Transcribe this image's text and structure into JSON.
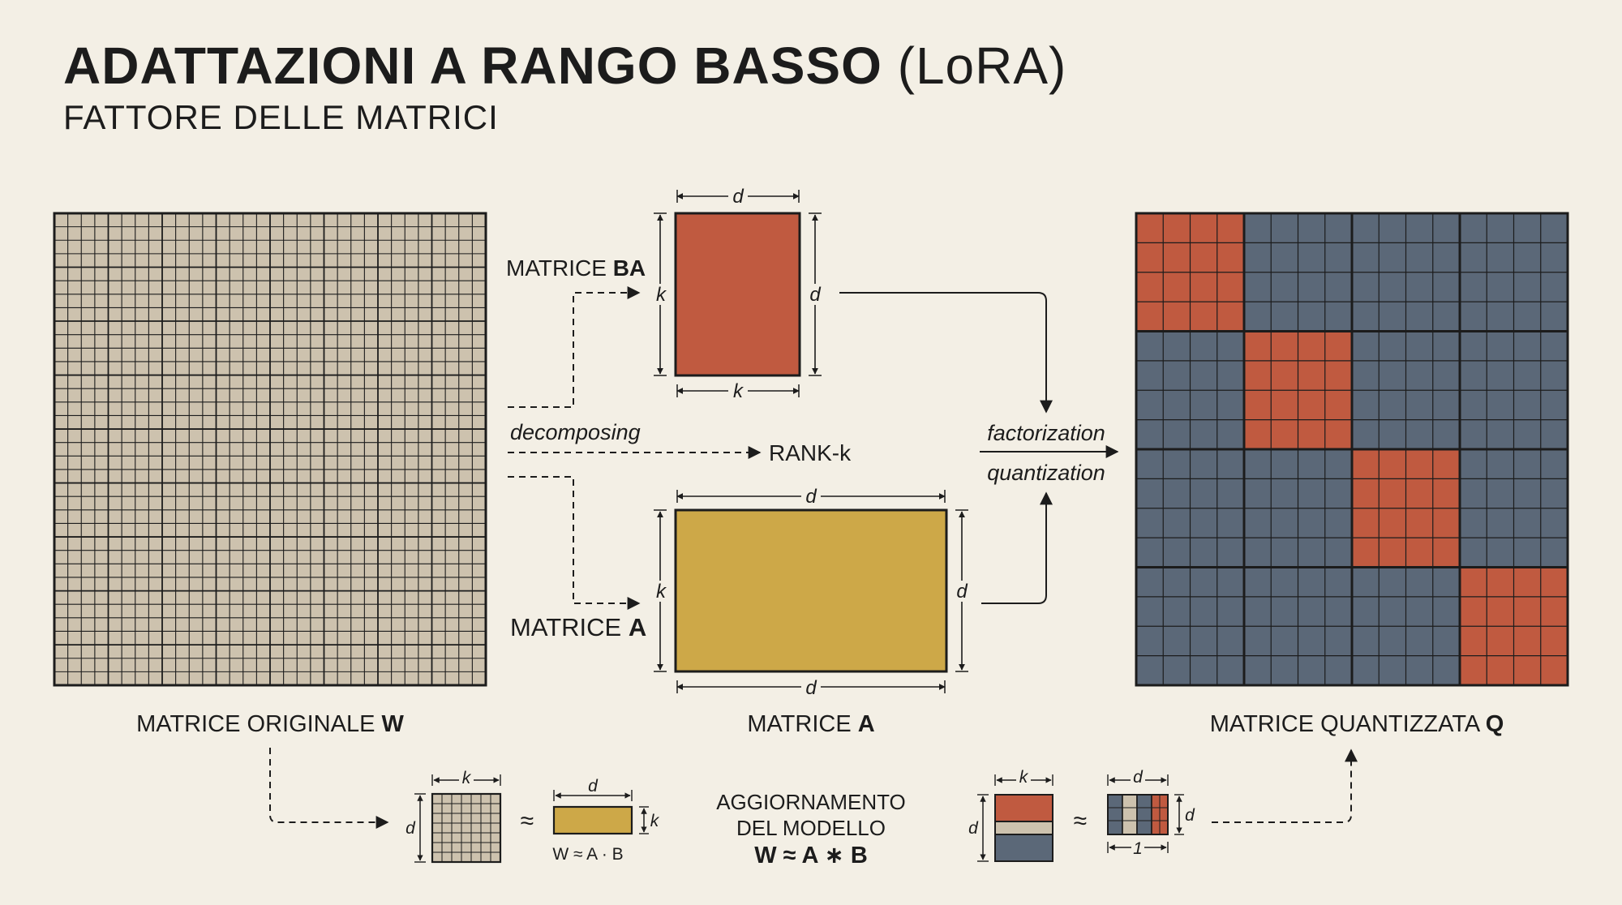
{
  "title": "ADATTAZIONI A RANGO BASSO",
  "title_paren": "(LoRA)",
  "subtitle": "FATTORE DELLE MATRICI",
  "colors": {
    "background": "#f3efe5",
    "grid_cell": "#cdc2ae",
    "terracotta": "#c05a40",
    "mustard": "#cda848",
    "slate": "#5b6878",
    "ink": "#1c1c1c"
  },
  "labels": {
    "matrix_ba": "MATRICE ",
    "matrix_ba_bold": "BA",
    "matrix_a_side": "MATRICE ",
    "matrix_a_side_bold": "A",
    "decomposing": "decomposing",
    "rank_k": "RANK-k",
    "factorization": "factorization",
    "quantization": "quantization",
    "original_caption": "MATRICE ORIGINALE ",
    "original_caption_bold": "W",
    "a_caption": "MATRICE ",
    "a_caption_bold": "A",
    "quant_caption": "MATRICE QUANTIZZATA ",
    "quant_caption_bold": "Q",
    "dim_d": "d",
    "dim_k": "k",
    "dim_1": "1",
    "approx": "≈",
    "formula_small": "W ≈ A · B",
    "update_line1": "AGGIORNAMENTO",
    "update_line2": "DEL MODELLO",
    "update_formula": "W ≈ A ∗ B"
  }
}
